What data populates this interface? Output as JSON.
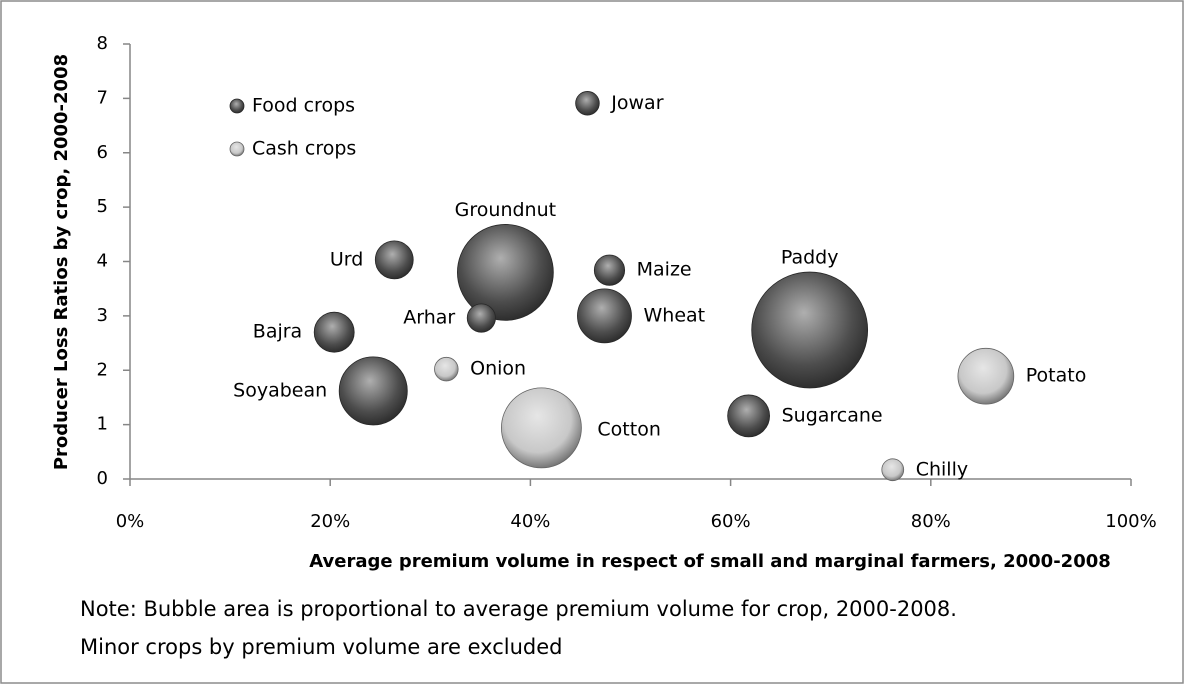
{
  "chart_data": {
    "type": "bubble",
    "x_label": "Average premium volume in respect of small and marginal farmers, 2000-2008",
    "y_label": "Producer Loss Ratios by crop, 2000-2008",
    "note": [
      "Note: Bubble area is proportional to average premium volume for crop, 2000-2008.",
      "Minor crops by premium volume are excluded"
    ],
    "xlim": [
      0,
      100
    ],
    "xticks": [
      {
        "value": 0,
        "label": "0%"
      },
      {
        "value": 20,
        "label": "20%"
      },
      {
        "value": 40,
        "label": "40%"
      },
      {
        "value": 60,
        "label": "60%"
      },
      {
        "value": 80,
        "label": "80%"
      },
      {
        "value": 100,
        "label": "100%"
      }
    ],
    "ylim": [
      0,
      8
    ],
    "yticks": [
      0,
      1,
      2,
      3,
      4,
      5,
      6,
      7,
      8
    ],
    "legend": "top-left",
    "series": [
      {
        "name": "Food crops",
        "color": "#4d4d4d",
        "labels": [
          "Jowar",
          "Groundnut",
          "Urd",
          "Maize",
          "Paddy",
          "Arhar",
          "Wheat",
          "Bajra",
          "Soyabean",
          "Sugarcane"
        ],
        "x": [
          45.7,
          37.5,
          26.4,
          47.9,
          67.9,
          35.1,
          47.4,
          20.4,
          24.3,
          61.8
        ],
        "values": [
          6.91,
          3.8,
          4.03,
          3.84,
          2.74,
          2.96,
          3.0,
          2.7,
          1.62,
          1.16
        ],
        "sizes": [
          1.4,
          23,
          3.6,
          2.3,
          33.6,
          2,
          7.3,
          4,
          11.6,
          4.4
        ]
      },
      {
        "name": "Cash crops",
        "color": "#c8c8c8",
        "labels": [
          "Onion",
          "Cotton",
          "Potato",
          "Chilly"
        ],
        "x": [
          31.6,
          41.1,
          85.5,
          76.2
        ],
        "values": [
          2.02,
          0.94,
          1.89,
          0.17
        ],
        "sizes": [
          1.4,
          16,
          7.8,
          1.2
        ]
      }
    ]
  }
}
